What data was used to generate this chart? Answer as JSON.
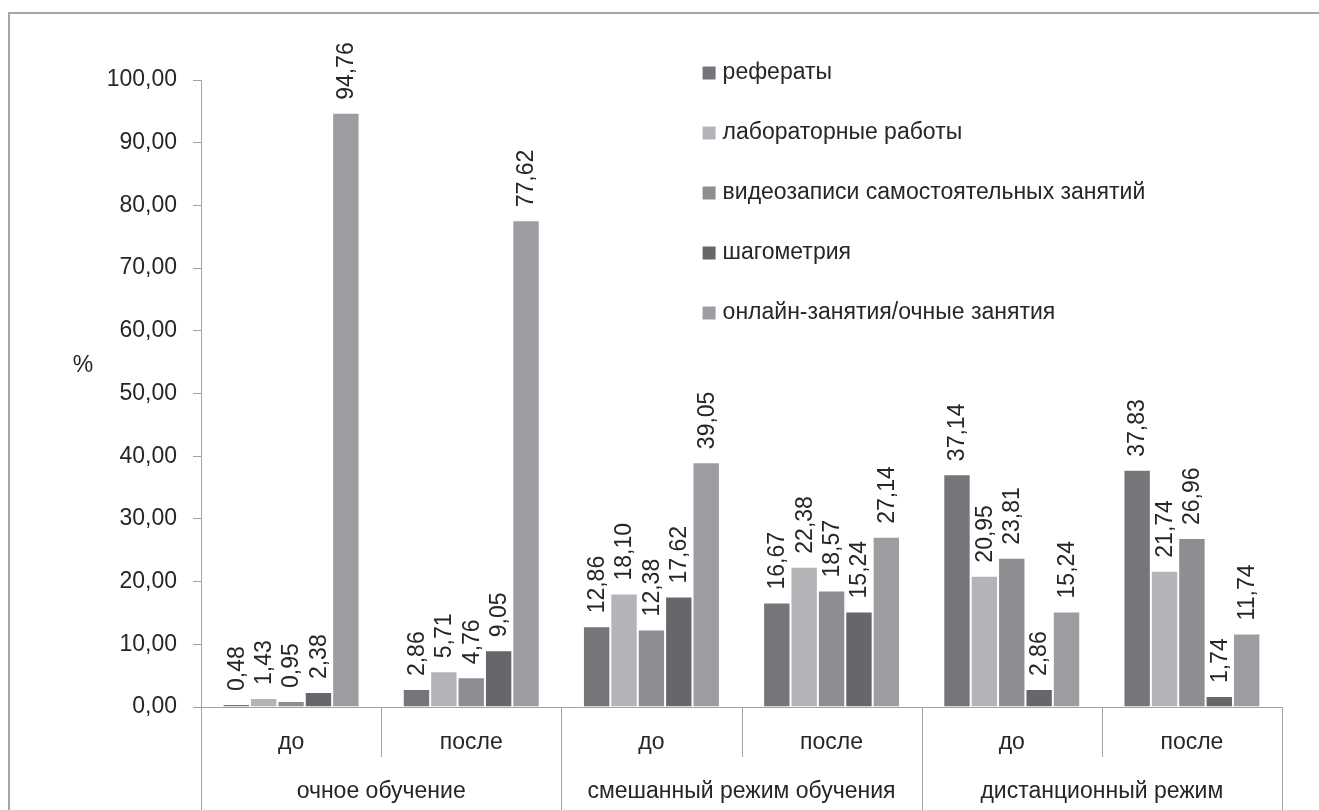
{
  "chart_data": {
    "type": "bar",
    "ylabel": "%",
    "categories": [
      "до",
      "после",
      "до",
      "после",
      "до",
      "после"
    ],
    "annotations": [
      "очное обучение",
      "смешанный режим обучения",
      "дистанционный режим"
    ],
    "series": [
      {
        "name": "рефераты",
        "color": "#76767a",
        "values": [
          0.48,
          2.86,
          12.86,
          16.67,
          37.14,
          37.83
        ],
        "value_labels": [
          "0,48",
          "2,86",
          "12,86",
          "16,67",
          "37,14",
          "37,83"
        ]
      },
      {
        "name": "лабораторные работы",
        "color": "#b4b4b8",
        "values": [
          1.43,
          5.71,
          18.1,
          22.38,
          20.95,
          21.74
        ],
        "value_labels": [
          "1,43",
          "5,71",
          "18,10",
          "22,38",
          "20,95",
          "21,74"
        ]
      },
      {
        "name": "видеозаписи самостоятельных занятий",
        "color": "#8e8e92",
        "values": [
          0.95,
          4.76,
          12.38,
          18.57,
          23.81,
          26.96
        ],
        "value_labels": [
          "0,95",
          "4,76",
          "12,38",
          "18,57",
          "23,81",
          "26,96"
        ]
      },
      {
        "name": "шагометрия",
        "color": "#67676b",
        "values": [
          2.38,
          9.05,
          17.62,
          15.24,
          2.86,
          1.74
        ],
        "value_labels": [
          "2,38",
          "9,05",
          "17,62",
          "15,24",
          "2,86",
          "1,74"
        ]
      },
      {
        "name": "онлайн-занятия/очные занятия",
        "color": "#9d9da1",
        "values": [
          94.76,
          77.62,
          39.05,
          27.14,
          15.24,
          11.74
        ],
        "value_labels": [
          "94,76",
          "77,62",
          "39,05",
          "27,14",
          "15,24",
          "11,74"
        ]
      }
    ],
    "ylim": [
      0,
      100
    ],
    "yticks": [
      {
        "value": 0,
        "label": "0,00"
      },
      {
        "value": 10,
        "label": "10,00"
      },
      {
        "value": 20,
        "label": "20,00"
      },
      {
        "value": 30,
        "label": "30,00"
      },
      {
        "value": 40,
        "label": "40,00"
      },
      {
        "value": 50,
        "label": "50,00"
      },
      {
        "value": 60,
        "label": "60,00"
      },
      {
        "value": 70,
        "label": "70,00"
      },
      {
        "value": 80,
        "label": "80,00"
      },
      {
        "value": 90,
        "label": "90,00"
      },
      {
        "value": 100,
        "label": "100,00"
      }
    ],
    "legend": "top right"
  }
}
